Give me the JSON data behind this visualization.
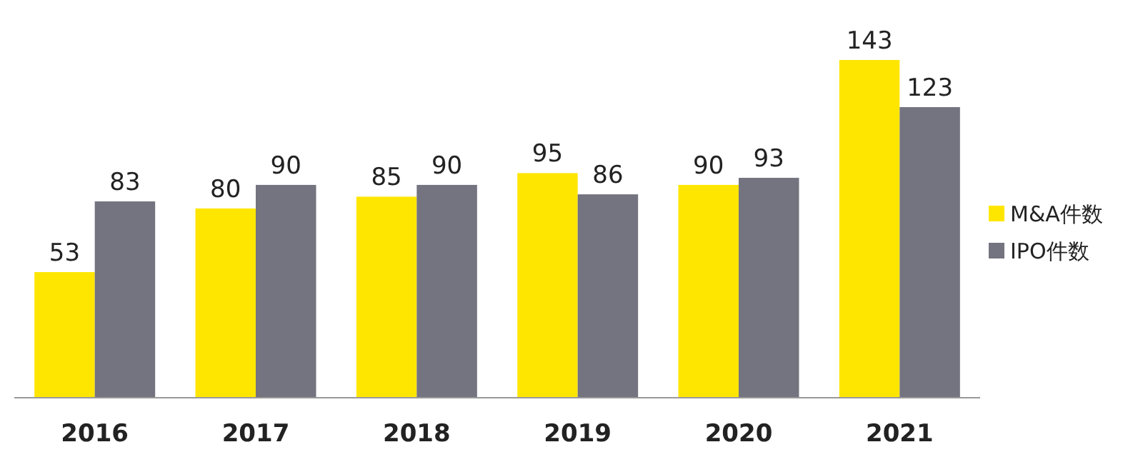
{
  "chart_data": {
    "type": "bar",
    "categories": [
      "2016",
      "2017",
      "2018",
      "2019",
      "2020",
      "2021"
    ],
    "series": [
      {
        "name": "M&A件数",
        "color": "#ffe600",
        "values": [
          53,
          80,
          85,
          95,
          90,
          143
        ]
      },
      {
        "name": "IPO件数",
        "color": "#747480",
        "values": [
          83,
          90,
          90,
          86,
          93,
          123
        ]
      }
    ],
    "data_labels": true,
    "legend": "right"
  }
}
